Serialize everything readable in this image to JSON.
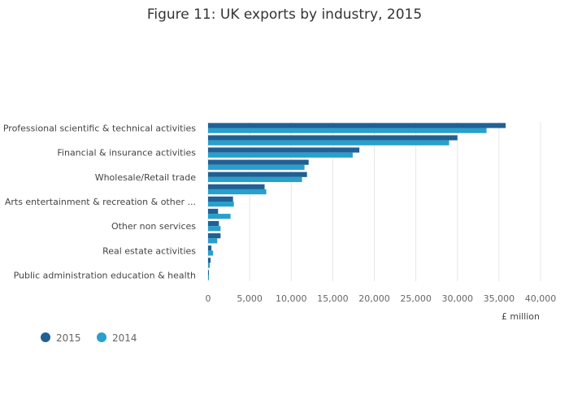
{
  "chart_data": {
    "type": "bar",
    "orientation": "horizontal",
    "title": "Figure 11: UK exports by industry, 2015",
    "xlabel": "£ million",
    "ylabel": "",
    "xlim": [
      0,
      40000
    ],
    "x_ticks": [
      0,
      5000,
      10000,
      15000,
      20000,
      25000,
      30000,
      35000,
      40000
    ],
    "x_tick_labels": [
      "0",
      "5,000",
      "10,000",
      "15,000",
      "20,000",
      "25,000",
      "30,000",
      "35,000",
      "40,000"
    ],
    "categories": [
      "Professional scientific & technical activities",
      "",
      "Financial & insurance activities",
      "",
      "Wholesale/Retail trade",
      "",
      "Arts entertainment & recreation & other ...",
      "",
      "Other non services",
      "",
      "Real estate activities",
      "",
      "Public administration education & health"
    ],
    "series": [
      {
        "name": "2015",
        "color": "#206095",
        "values": [
          35800,
          30000,
          18200,
          12100,
          11900,
          6800,
          3000,
          1200,
          1300,
          1500,
          400,
          300,
          100
        ]
      },
      {
        "name": "2014",
        "color": "#27a0cc",
        "values": [
          33500,
          29000,
          17400,
          11600,
          11300,
          7000,
          3100,
          2700,
          1500,
          1100,
          600,
          200,
          100
        ]
      }
    ],
    "legend_position": "bottom-left",
    "grid": true
  }
}
